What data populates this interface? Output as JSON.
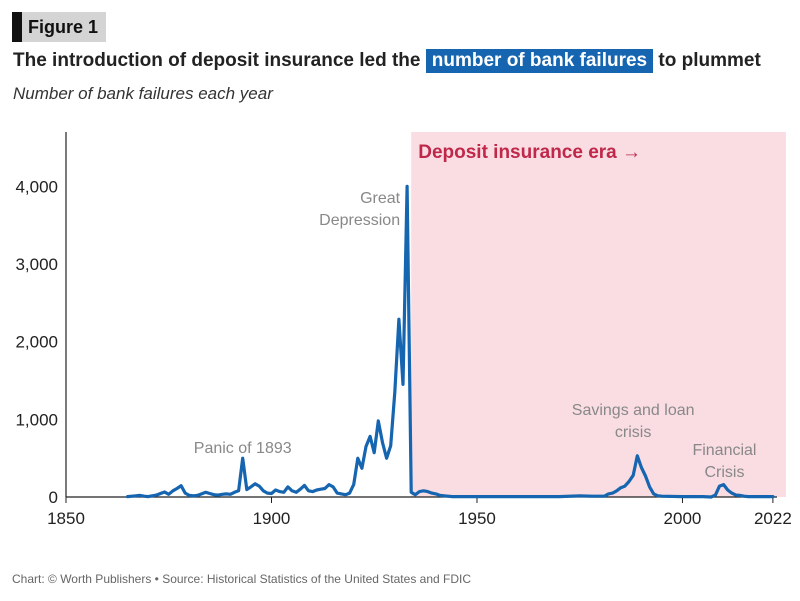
{
  "figure_label": "Figure 1",
  "title": {
    "before": "The introduction of deposit insurance led the ",
    "highlight": "number of bank failures",
    "after": " to plummet"
  },
  "subtitle": "Number of bank failures each year",
  "footer": "Chart: © Worth Publishers • Source: Historical Statistics of the United States and FDIC",
  "colors": {
    "line": "#1665b0",
    "era_fill": "#f9dde3",
    "era_text": "#c0284a",
    "highlight": "#1665b0"
  },
  "chart_data": {
    "type": "line",
    "title": "The introduction of deposit insurance led the number of bank failures to plummet",
    "subtitle": "Number of bank failures each year",
    "xlabel": "",
    "ylabel": "",
    "xlim": [
      1850,
      2023
    ],
    "ylim": [
      0,
      4700
    ],
    "x_ticks": [
      1850,
      1900,
      1950,
      2000,
      2022
    ],
    "x_tick_labels": [
      "1850",
      "1900",
      "1950",
      "2000",
      "2022"
    ],
    "y_ticks": [
      0,
      1000,
      2000,
      3000,
      4000
    ],
    "y_tick_labels": [
      "0",
      "1,000",
      "2,000",
      "3,000",
      "4,000"
    ],
    "grid": false,
    "shaded_region": {
      "x_start": 1934,
      "x_end": 2022,
      "label": "Deposit insurance era →"
    },
    "annotations": [
      {
        "lines": [
          "Panic of 1893"
        ],
        "x": 1893,
        "y": 600
      },
      {
        "lines": [
          "Great",
          "Depression"
        ],
        "x": 1933,
        "y": 4000
      },
      {
        "lines": [
          "Savings and loan",
          "crisis"
        ],
        "x": 1988,
        "y": 800
      },
      {
        "lines": [
          "Financial",
          "Crisis"
        ],
        "x": 2009,
        "y": 300
      }
    ],
    "series": [
      {
        "x": [
          1865,
          1866,
          1867,
          1868,
          1869,
          1870,
          1871,
          1872,
          1873,
          1874,
          1875,
          1876,
          1877,
          1878,
          1879,
          1880,
          1881,
          1882,
          1883,
          1884,
          1885,
          1886,
          1887,
          1888,
          1889,
          1890,
          1891,
          1892,
          1893,
          1894,
          1895,
          1896,
          1897,
          1898,
          1899,
          1900,
          1901,
          1902,
          1903,
          1904,
          1905,
          1906,
          1907,
          1908,
          1909,
          1910,
          1911,
          1912,
          1913,
          1914,
          1915,
          1916,
          1917,
          1918,
          1919,
          1920,
          1921,
          1922,
          1923,
          1924,
          1925,
          1926,
          1927,
          1928,
          1929,
          1930,
          1931,
          1932,
          1933,
          1934,
          1935,
          1936,
          1937,
          1938,
          1939,
          1940,
          1941,
          1942,
          1943,
          1944,
          1945,
          1950,
          1955,
          1960,
          1965,
          1970,
          1975,
          1978,
          1980,
          1981,
          1982,
          1983,
          1984,
          1985,
          1986,
          1987,
          1988,
          1989,
          1990,
          1991,
          1992,
          1993,
          1994,
          1995,
          2000,
          2005,
          2007,
          2008,
          2009,
          2010,
          2011,
          2012,
          2013,
          2014,
          2015,
          2016,
          2018,
          2020,
          2022
        ],
        "values": [
          5,
          10,
          15,
          20,
          10,
          5,
          15,
          25,
          45,
          65,
          35,
          80,
          110,
          145,
          50,
          20,
          15,
          20,
          40,
          60,
          45,
          30,
          25,
          35,
          40,
          35,
          60,
          80,
          500,
          95,
          130,
          170,
          140,
          80,
          50,
          45,
          90,
          70,
          60,
          130,
          80,
          60,
          100,
          150,
          80,
          70,
          90,
          100,
          110,
          160,
          130,
          50,
          40,
          30,
          50,
          160,
          500,
          370,
          650,
          780,
          570,
          980,
          700,
          500,
          660,
          1350,
          2290,
          1450,
          4000,
          60,
          30,
          70,
          80,
          70,
          50,
          40,
          20,
          15,
          10,
          5,
          5,
          5,
          5,
          5,
          5,
          5,
          15,
          10,
          10,
          10,
          40,
          50,
          80,
          120,
          140,
          200,
          280,
          530,
          380,
          270,
          130,
          40,
          15,
          10,
          5,
          5,
          0,
          25,
          140,
          160,
          90,
          50,
          25,
          20,
          10,
          5,
          5,
          5,
          5
        ]
      }
    ]
  }
}
